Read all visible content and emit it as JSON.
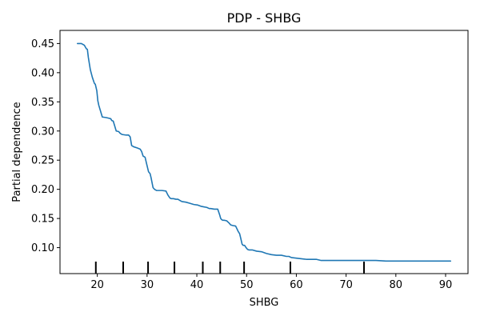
{
  "chart_data": {
    "type": "line",
    "title": "PDP - SHBG",
    "xlabel": "SHBG",
    "ylabel": "Partial dependence",
    "xlim": [
      12.5,
      94.5
    ],
    "ylim": [
      0.0555,
      0.4725
    ],
    "grid": false,
    "legend": "none",
    "x_ticks": [
      20,
      30,
      40,
      50,
      60,
      70,
      80,
      90
    ],
    "x_tick_labels": [
      "20",
      "30",
      "40",
      "50",
      "60",
      "70",
      "80",
      "90"
    ],
    "y_ticks": [
      0.1,
      0.15,
      0.2,
      0.25,
      0.3,
      0.35,
      0.4,
      0.45
    ],
    "y_tick_labels": [
      "0.10",
      "0.15",
      "0.20",
      "0.25",
      "0.30",
      "0.35",
      "0.40",
      "0.45"
    ],
    "rug_x": [
      19.7,
      25.2,
      30.2,
      35.5,
      41.2,
      44.7,
      49.5,
      58.8,
      73.6
    ],
    "series": [
      {
        "color": "#1f77b4",
        "x": [
          16.0,
          16.8,
          17.4,
          17.8,
          18.0,
          18.2,
          18.6,
          19.0,
          19.4,
          19.6,
          19.9,
          20.1,
          20.3,
          21.0,
          21.8,
          22.3,
          22.7,
          22.9,
          23.2,
          23.8,
          24.3,
          24.6,
          25.0,
          25.8,
          26.3,
          26.6,
          26.9,
          27.3,
          28.0,
          28.6,
          28.9,
          29.2,
          29.6,
          29.9,
          30.3,
          30.6,
          30.8,
          31.2,
          31.5,
          31.9,
          32.3,
          33.0,
          33.8,
          34.2,
          34.6,
          34.9,
          35.3,
          35.8,
          36.2,
          36.6,
          37.0,
          37.8,
          38.6,
          39.4,
          40.2,
          40.8,
          41.4,
          42.0,
          42.5,
          42.8,
          43.5,
          44.2,
          44.6,
          44.8,
          45.0,
          45.2,
          45.5,
          46.0,
          46.5,
          46.8,
          47.2,
          47.8,
          48.3,
          48.6,
          48.8,
          49.1,
          49.3,
          49.6,
          49.9,
          50.2,
          50.5,
          51.2,
          52.0,
          53.0,
          54.0,
          55.0,
          56.0,
          57.0,
          58.0,
          58.5,
          59.0,
          60.0,
          61.0,
          62.0,
          63.0,
          64.0,
          65.0,
          66.0,
          68.0,
          70.0,
          72.0,
          74.0,
          76.0,
          78.0,
          80.0,
          84.0,
          88.0,
          91.0
        ],
        "y": [
          0.45,
          0.45,
          0.447,
          0.441,
          0.44,
          0.426,
          0.405,
          0.392,
          0.382,
          0.38,
          0.369,
          0.352,
          0.344,
          0.324,
          0.323,
          0.322,
          0.321,
          0.318,
          0.317,
          0.3,
          0.299,
          0.296,
          0.294,
          0.293,
          0.293,
          0.29,
          0.275,
          0.273,
          0.271,
          0.269,
          0.265,
          0.257,
          0.255,
          0.244,
          0.23,
          0.227,
          0.22,
          0.203,
          0.2,
          0.198,
          0.198,
          0.198,
          0.197,
          0.19,
          0.185,
          0.184,
          0.184,
          0.183,
          0.183,
          0.181,
          0.179,
          0.178,
          0.176,
          0.174,
          0.173,
          0.171,
          0.17,
          0.169,
          0.167,
          0.167,
          0.166,
          0.166,
          0.156,
          0.15,
          0.148,
          0.147,
          0.147,
          0.146,
          0.142,
          0.139,
          0.138,
          0.137,
          0.128,
          0.124,
          0.117,
          0.106,
          0.104,
          0.104,
          0.1,
          0.097,
          0.096,
          0.096,
          0.094,
          0.093,
          0.09,
          0.088,
          0.087,
          0.087,
          0.085,
          0.085,
          0.083,
          0.082,
          0.081,
          0.08,
          0.08,
          0.08,
          0.078,
          0.078,
          0.078,
          0.078,
          0.078,
          0.078,
          0.078,
          0.077,
          0.077,
          0.077,
          0.077,
          0.077
        ]
      }
    ]
  }
}
